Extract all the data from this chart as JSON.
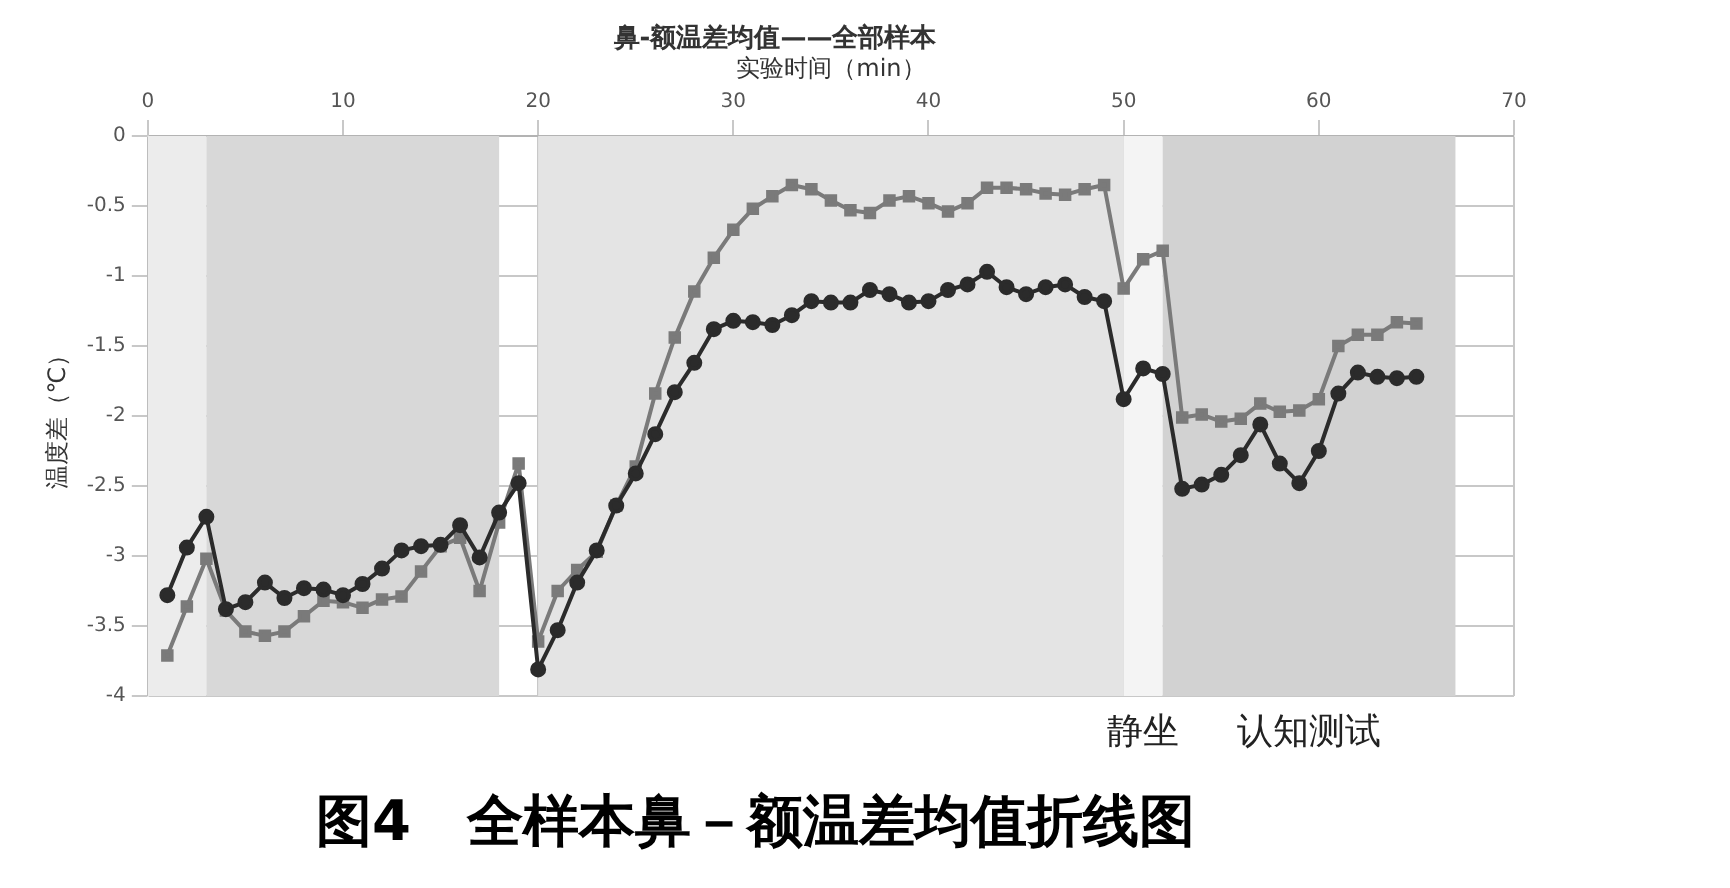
{
  "chart_data": {
    "type": "line",
    "title": "鼻-额温差均值——全部样本",
    "xlabel": "实验时间（min）",
    "ylabel": "温度差（℃）",
    "x": [
      1,
      2,
      3,
      4,
      5,
      6,
      7,
      8,
      9,
      10,
      11,
      12,
      13,
      14,
      15,
      16,
      17,
      18,
      19,
      20,
      21,
      22,
      23,
      24,
      25,
      26,
      27,
      28,
      29,
      30,
      31,
      32,
      33,
      34,
      35,
      36,
      37,
      38,
      39,
      40,
      41,
      42,
      43,
      44,
      45,
      46,
      47,
      48,
      49,
      50,
      51,
      52,
      53,
      54,
      55,
      56,
      57,
      58,
      59,
      60,
      61,
      62,
      63,
      64,
      65
    ],
    "series": [
      {
        "color": "#2b2b2b",
        "marker": "circle",
        "values": [
          -3.28,
          -2.94,
          -2.72,
          -3.38,
          -3.33,
          -3.19,
          -3.3,
          -3.23,
          -3.24,
          -3.28,
          -3.2,
          -3.09,
          -2.96,
          -2.93,
          -2.92,
          -2.78,
          -3.01,
          -2.69,
          -2.48,
          -3.81,
          -3.53,
          -3.19,
          -2.96,
          -2.64,
          -2.41,
          -2.13,
          -1.83,
          -1.62,
          -1.38,
          -1.32,
          -1.33,
          -1.35,
          -1.28,
          -1.18,
          -1.19,
          -1.19,
          -1.1,
          -1.13,
          -1.19,
          -1.18,
          -1.1,
          -1.06,
          -0.97,
          -1.08,
          -1.13,
          -1.08,
          -1.06,
          -1.15,
          -1.18,
          -1.88,
          -1.66,
          -1.7,
          -2.52,
          -2.49,
          -2.42,
          -2.28,
          -2.06,
          -2.34,
          -2.48,
          -2.25,
          -1.84,
          -1.69,
          -1.72,
          -1.73,
          -1.72
        ]
      },
      {
        "color": "#7a7a7a",
        "marker": "square",
        "values": [
          -3.71,
          -3.36,
          -3.02,
          -3.39,
          -3.54,
          -3.57,
          -3.54,
          -3.43,
          -3.32,
          -3.33,
          -3.37,
          -3.31,
          -3.29,
          -3.11,
          -2.93,
          -2.87,
          -3.25,
          -2.76,
          -2.34,
          -3.61,
          -3.25,
          -3.1,
          -2.97,
          -2.64,
          -2.36,
          -1.84,
          -1.44,
          -1.11,
          -0.87,
          -0.67,
          -0.52,
          -0.43,
          -0.35,
          -0.38,
          -0.46,
          -0.53,
          -0.55,
          -0.46,
          -0.43,
          -0.48,
          -0.54,
          -0.48,
          -0.37,
          -0.37,
          -0.38,
          -0.41,
          -0.42,
          -0.38,
          -0.35,
          -1.09,
          -0.88,
          -0.82,
          -2.01,
          -1.99,
          -2.04,
          -2.02,
          -1.91,
          -1.97,
          -1.96,
          -1.88,
          -1.5,
          -1.42,
          -1.42,
          -1.33,
          -1.34
        ]
      }
    ],
    "xlim": [
      0,
      70
    ],
    "xticks": [
      0,
      10,
      20,
      30,
      40,
      50,
      60,
      70
    ],
    "ylim": [
      -4,
      0
    ],
    "yticks": [
      0,
      -0.5,
      -1,
      -1.5,
      -2,
      -2.5,
      -3,
      -3.5,
      -4
    ],
    "grid": true,
    "legend": false,
    "line_style": "solid",
    "bands": [
      {
        "axis": "x",
        "from": 0,
        "to": 3,
        "color": "#ececec"
      },
      {
        "axis": "x",
        "from": 3,
        "to": 18,
        "color": "#d8d8d8"
      },
      {
        "axis": "x",
        "from": 20,
        "to": 50,
        "color": "#e4e4e4"
      },
      {
        "axis": "x",
        "from": 50,
        "to": 52,
        "color": "#f4f4f4",
        "label": "静坐"
      },
      {
        "axis": "x",
        "from": 52,
        "to": 67,
        "color": "#d2d2d2",
        "label": "认知测试"
      }
    ],
    "annotations": [
      "图4　全样本鼻－额温差均值折线图"
    ]
  }
}
